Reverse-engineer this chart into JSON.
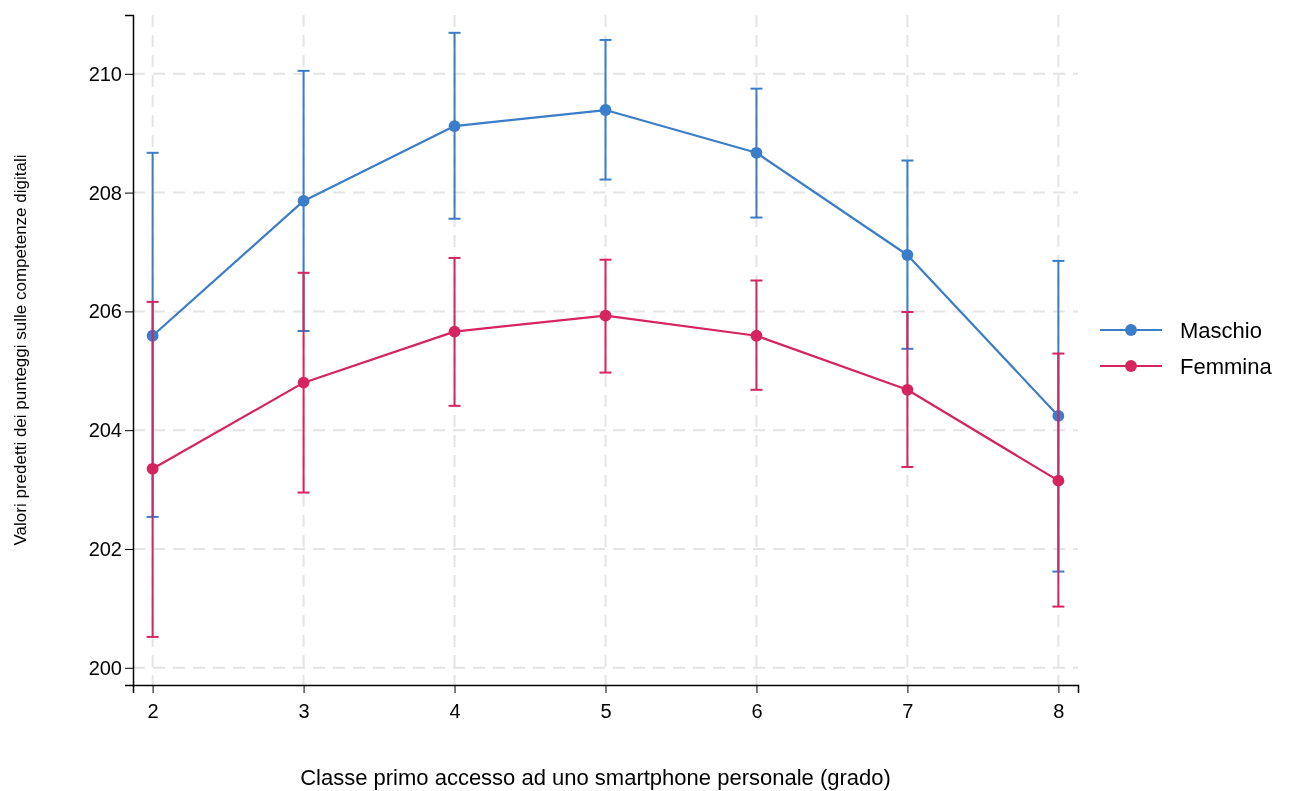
{
  "chart_data": {
    "type": "line",
    "xlabel": "Classe primo accesso ad uno smartphone personale (grado)",
    "ylabel": "Valori predetti dei punteggi sulle competenze digitali",
    "x": [
      2,
      3,
      4,
      5,
      6,
      7,
      8
    ],
    "series": [
      {
        "name": "Maschio",
        "color": "#3a7dc8",
        "values": [
          205.59,
          207.86,
          209.12,
          209.39,
          208.67,
          206.95,
          204.24
        ],
        "errors": [
          [
            202.54,
            208.67
          ],
          [
            205.67,
            210.05
          ],
          [
            207.56,
            210.69
          ],
          [
            208.22,
            210.57
          ],
          [
            207.58,
            209.75
          ],
          [
            205.37,
            208.54
          ],
          [
            201.62,
            206.85
          ]
        ]
      },
      {
        "name": "Femmina",
        "color": "#d6245f",
        "values": [
          203.35,
          204.8,
          205.66,
          205.93,
          205.59,
          204.68,
          203.15
        ],
        "errors": [
          [
            200.52,
            206.16
          ],
          [
            202.95,
            206.65
          ],
          [
            204.41,
            206.9
          ],
          [
            204.97,
            206.87
          ],
          [
            204.68,
            206.52
          ],
          [
            203.38,
            205.99
          ],
          [
            201.03,
            205.29
          ]
        ]
      }
    ],
    "xlim": [
      1.87,
      8.13
    ],
    "ylim": [
      199.71,
      210.99
    ],
    "xticks": [
      2,
      3,
      4,
      5,
      6,
      7,
      8
    ],
    "yticks": [
      200,
      202,
      204,
      206,
      208,
      210
    ],
    "grid": true,
    "legend": "right",
    "marker": "circle",
    "line_style": "solid"
  }
}
